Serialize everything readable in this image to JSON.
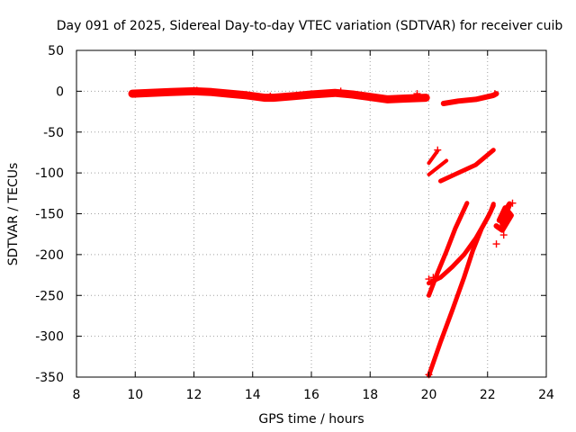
{
  "chart_data": {
    "type": "scatter",
    "title": "Day 091 of 2025, Sidereal Day-to-day VTEC variation (SDTVAR) for receiver cuib",
    "xlabel": "GPS time / hours",
    "ylabel": "SDTVAR / TECUs",
    "xlim": [
      8,
      24
    ],
    "ylim": [
      -350,
      50
    ],
    "xticks": [
      8,
      10,
      12,
      14,
      16,
      18,
      20,
      22,
      24
    ],
    "yticks": [
      50,
      0,
      -50,
      -100,
      -150,
      -200,
      -250,
      -300,
      -350
    ],
    "xtick_labels": [
      "8",
      "10",
      "12",
      "14",
      "16",
      "18",
      "20",
      "22",
      "24"
    ],
    "ytick_labels": [
      "50",
      "0",
      "-50",
      "-100",
      "-150",
      "-200",
      "-250",
      "-300",
      "-350"
    ],
    "grid": true,
    "legend": "none",
    "marker": "plus",
    "color": "#ff0000",
    "series": [
      {
        "name": "band-main",
        "width": 9,
        "points": [
          [
            9.9,
            -3
          ],
          [
            10.5,
            -2
          ],
          [
            11.2,
            -1
          ],
          [
            12.0,
            0
          ],
          [
            12.6,
            -1
          ],
          [
            13.2,
            -3
          ],
          [
            13.8,
            -5
          ],
          [
            14.4,
            -8
          ],
          [
            14.7,
            -8
          ],
          [
            15.4,
            -6
          ],
          [
            16.0,
            -4
          ],
          [
            16.8,
            -2
          ],
          [
            17.4,
            -4
          ],
          [
            18.0,
            -7
          ],
          [
            18.6,
            -10
          ],
          [
            19.2,
            -9
          ],
          [
            19.9,
            -8
          ]
        ]
      },
      {
        "name": "band-tail",
        "width": 6,
        "points": [
          [
            20.5,
            -15
          ],
          [
            21.0,
            -12
          ],
          [
            21.6,
            -10
          ],
          [
            22.2,
            -5
          ],
          [
            22.3,
            -3
          ]
        ]
      },
      {
        "name": "short-1",
        "width": 4,
        "points": [
          [
            20.0,
            -88
          ],
          [
            20.3,
            -73
          ]
        ]
      },
      {
        "name": "short-2",
        "width": 4,
        "points": [
          [
            20.0,
            -102
          ],
          [
            20.6,
            -85
          ]
        ]
      },
      {
        "name": "arc-upper",
        "width": 5,
        "points": [
          [
            20.4,
            -110
          ],
          [
            21.0,
            -100
          ],
          [
            21.6,
            -90
          ],
          [
            22.2,
            -72
          ]
        ]
      },
      {
        "name": "ramp-left",
        "width": 5,
        "points": [
          [
            20.0,
            -250
          ],
          [
            20.3,
            -222
          ],
          [
            20.6,
            -196
          ],
          [
            20.9,
            -168
          ],
          [
            21.3,
            -137
          ]
        ]
      },
      {
        "name": "ramp-steep",
        "width": 5,
        "points": [
          [
            20.0,
            -348
          ],
          [
            20.4,
            -307
          ],
          [
            20.8,
            -268
          ],
          [
            21.2,
            -228
          ],
          [
            21.5,
            -195
          ],
          [
            21.8,
            -168
          ],
          [
            22.1,
            -148
          ],
          [
            22.2,
            -138
          ]
        ]
      },
      {
        "name": "ramp-mid",
        "width": 5,
        "points": [
          [
            20.0,
            -235
          ],
          [
            20.4,
            -228
          ],
          [
            20.8,
            -215
          ],
          [
            21.2,
            -200
          ],
          [
            21.6,
            -180
          ],
          [
            22.0,
            -155
          ],
          [
            22.2,
            -140
          ]
        ]
      },
      {
        "name": "cluster",
        "width": 6,
        "points": [
          [
            22.3,
            -165
          ],
          [
            22.5,
            -170
          ],
          [
            22.8,
            -152
          ],
          [
            22.6,
            -143
          ],
          [
            22.4,
            -158
          ],
          [
            22.75,
            -138
          ],
          [
            22.5,
            -162
          ]
        ]
      }
    ],
    "markers": [
      [
        22.3,
        -187
      ],
      [
        22.55,
        -176
      ],
      [
        22.85,
        -137
      ],
      [
        20.3,
        -72
      ],
      [
        20.0,
        -230
      ],
      [
        20.15,
        -228
      ],
      [
        14.6,
        -6
      ],
      [
        17.0,
        0
      ],
      [
        12.1,
        1
      ],
      [
        19.6,
        -3
      ],
      [
        22.25,
        -3
      ],
      [
        20.0,
        -347
      ]
    ]
  }
}
